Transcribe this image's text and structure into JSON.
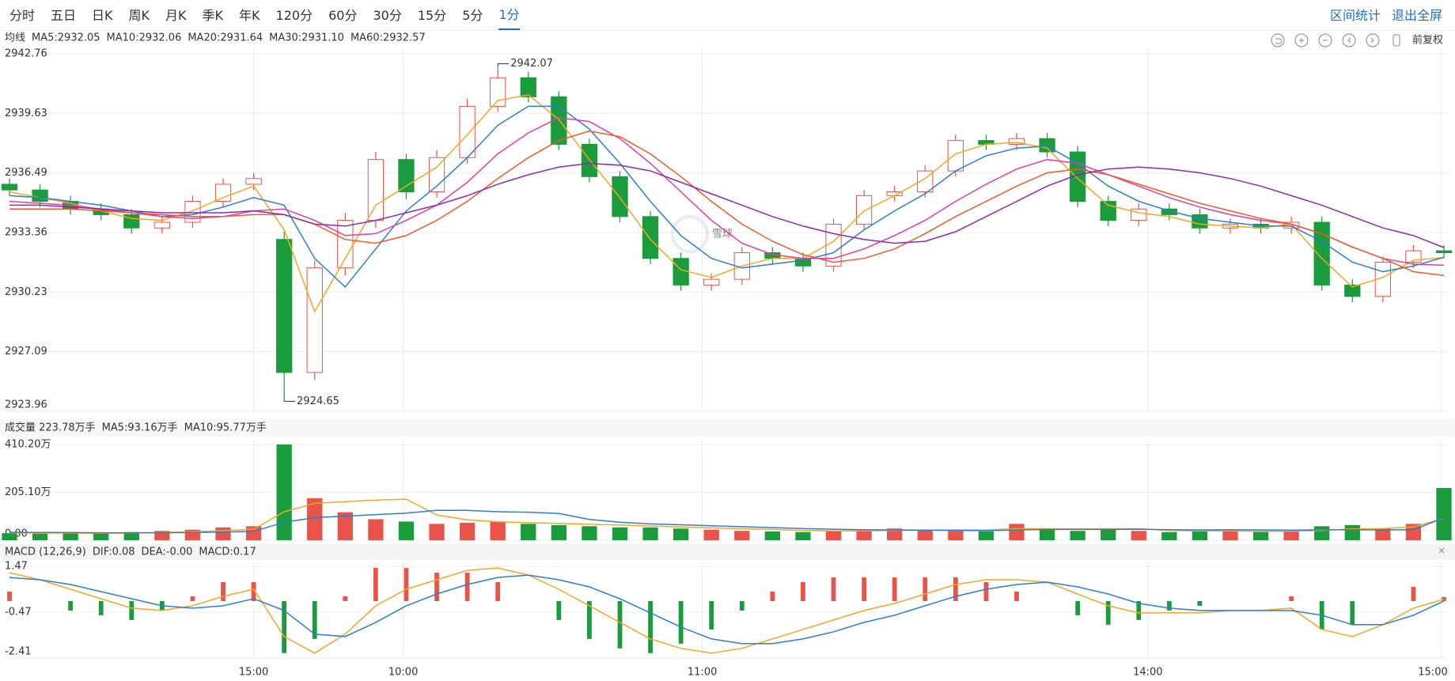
{
  "toolbar": {
    "tabs": [
      "分时",
      "五日",
      "日K",
      "周K",
      "月K",
      "季K",
      "年K",
      "120分",
      "60分",
      "30分",
      "15分",
      "5分",
      "1分"
    ],
    "active_tab": 12,
    "actions": [
      "区间统计",
      "退出全屏"
    ],
    "adjust": "前复权"
  },
  "chart_data": [
    {
      "type": "candlestick",
      "title": "均线",
      "watermark": "雪球",
      "up_color": "#e8534a",
      "down_color": "#1a9b3c",
      "grid": true,
      "ylim": [
        2923.96,
        2942.76
      ],
      "yticks": [
        2942.76,
        2939.63,
        2936.49,
        2933.36,
        2930.23,
        2927.09,
        2923.96
      ],
      "open": [
        2935.9,
        2935.6,
        2935.0,
        2934.6,
        2934.3,
        2933.6,
        2933.9,
        2935.0,
        2935.9,
        2933.0,
        2926.0,
        2931.5,
        2934.0,
        2937.2,
        2935.5,
        2937.3,
        2940.0,
        2941.5,
        2940.5,
        2938.0,
        2936.3,
        2934.2,
        2932.0,
        2930.6,
        2930.9,
        2932.3,
        2932.0,
        2931.6,
        2933.8,
        2935.3,
        2935.5,
        2936.6,
        2938.2,
        2938.0,
        2938.3,
        2937.6,
        2935.0,
        2934.0,
        2934.6,
        2934.3,
        2933.6,
        2933.8,
        2933.6,
        2933.9,
        2930.6,
        2930.0,
        2931.8,
        2932.4
      ],
      "close": [
        2935.6,
        2935.0,
        2934.6,
        2934.3,
        2933.6,
        2933.9,
        2935.0,
        2935.9,
        2936.2,
        2926.0,
        2931.5,
        2934.0,
        2937.2,
        2935.5,
        2937.3,
        2940.0,
        2941.5,
        2940.5,
        2938.0,
        2936.3,
        2934.2,
        2932.0,
        2930.6,
        2930.9,
        2932.3,
        2932.0,
        2931.6,
        2933.8,
        2935.3,
        2935.5,
        2936.6,
        2938.2,
        2938.0,
        2938.3,
        2937.6,
        2935.0,
        2934.0,
        2934.6,
        2934.3,
        2933.6,
        2933.8,
        2933.6,
        2933.9,
        2930.6,
        2930.0,
        2931.8,
        2932.4,
        2932.3
      ],
      "high": [
        2936.2,
        2935.9,
        2935.3,
        2934.9,
        2934.6,
        2934.2,
        2935.3,
        2936.2,
        2936.5,
        2933.4,
        2931.9,
        2934.4,
        2937.6,
        2937.5,
        2937.7,
        2940.4,
        2942.07,
        2941.8,
        2940.8,
        2938.3,
        2936.6,
        2934.5,
        2932.3,
        2931.2,
        2932.6,
        2932.6,
        2932.3,
        2934.1,
        2935.6,
        2935.8,
        2936.9,
        2938.5,
        2938.5,
        2938.6,
        2938.6,
        2937.9,
        2935.3,
        2934.9,
        2934.9,
        2934.6,
        2934.1,
        2934.1,
        2934.2,
        2934.2,
        2930.9,
        2932.1,
        2932.7,
        2932.7
      ],
      "low": [
        2935.3,
        2934.7,
        2934.3,
        2934.0,
        2933.3,
        2933.3,
        2933.6,
        2934.7,
        2935.6,
        2924.65,
        2925.6,
        2931.1,
        2933.6,
        2935.1,
        2935.2,
        2937.0,
        2939.7,
        2940.2,
        2937.7,
        2936.0,
        2933.9,
        2931.7,
        2930.3,
        2930.3,
        2930.6,
        2931.7,
        2931.3,
        2931.3,
        2933.5,
        2935.0,
        2935.2,
        2936.3,
        2937.7,
        2937.7,
        2937.3,
        2934.7,
        2933.7,
        2933.7,
        2934.0,
        2933.3,
        2933.3,
        2933.3,
        2933.3,
        2930.3,
        2929.7,
        2929.7,
        2931.5,
        2932.0
      ],
      "series": [
        {
          "name": "MA5:2932.05",
          "color": "#f5a623",
          "values": [
            2935.5,
            2935.2,
            2934.9,
            2934.5,
            2934.1,
            2934.0,
            2934.5,
            2935.2,
            2935.8,
            2933.5,
            2929.2,
            2932.0,
            2934.8,
            2935.8,
            2936.8,
            2938.5,
            2940.3,
            2940.6,
            2939.3,
            2937.2,
            2935.2,
            2933.0,
            2931.4,
            2931.0,
            2931.6,
            2932.0,
            2932.0,
            2932.9,
            2934.5,
            2935.3,
            2936.2,
            2937.5,
            2938.0,
            2938.1,
            2937.8,
            2936.2,
            2934.8,
            2934.4,
            2934.2,
            2933.8,
            2933.7,
            2933.6,
            2933.8,
            2932.0,
            2930.5,
            2931.0,
            2931.9,
            2932.05
          ]
        },
        {
          "name": "MA10:2932.06",
          "color": "#2a7fd4",
          "values": [
            2935.3,
            2935.2,
            2935.0,
            2934.8,
            2934.5,
            2934.2,
            2934.3,
            2934.7,
            2935.2,
            2934.8,
            2932.0,
            2930.5,
            2932.5,
            2934.5,
            2935.8,
            2937.3,
            2939.0,
            2940.0,
            2940.0,
            2938.8,
            2937.0,
            2935.0,
            2933.2,
            2932.0,
            2931.5,
            2931.7,
            2931.9,
            2932.3,
            2933.5,
            2934.5,
            2935.4,
            2936.6,
            2937.4,
            2937.8,
            2937.9,
            2937.0,
            2935.8,
            2935.0,
            2934.5,
            2934.1,
            2933.9,
            2933.7,
            2933.7,
            2932.9,
            2931.8,
            2931.3,
            2931.6,
            2932.06
          ]
        },
        {
          "name": "MA20:2931.64",
          "color": "#e83ba3",
          "values": [
            2935.0,
            2934.9,
            2934.8,
            2934.6,
            2934.4,
            2934.2,
            2934.1,
            2934.2,
            2934.5,
            2934.6,
            2934.0,
            2933.2,
            2933.3,
            2934.0,
            2934.8,
            2936.0,
            2937.5,
            2938.6,
            2939.4,
            2939.2,
            2938.3,
            2937.0,
            2935.5,
            2934.0,
            2932.8,
            2932.2,
            2932.0,
            2932.0,
            2932.5,
            2933.2,
            2934.0,
            2935.0,
            2935.9,
            2936.7,
            2937.2,
            2937.0,
            2936.4,
            2935.8,
            2935.2,
            2934.7,
            2934.3,
            2934.0,
            2933.8,
            2933.3,
            2932.6,
            2932.0,
            2931.7,
            2931.64
          ]
        },
        {
          "name": "MA30:2931.10",
          "color": "#f05a28",
          "values": [
            2934.6,
            2934.6,
            2934.6,
            2934.5,
            2934.4,
            2934.3,
            2934.2,
            2934.2,
            2934.3,
            2934.3,
            2933.8,
            2933.0,
            2932.8,
            2933.2,
            2934.0,
            2935.0,
            2936.2,
            2937.3,
            2938.2,
            2938.7,
            2938.4,
            2937.5,
            2936.3,
            2935.0,
            2933.8,
            2932.9,
            2932.2,
            2931.8,
            2932.0,
            2932.5,
            2933.3,
            2934.2,
            2935.0,
            2935.8,
            2936.5,
            2936.7,
            2936.4,
            2935.9,
            2935.4,
            2934.9,
            2934.5,
            2934.1,
            2933.8,
            2933.3,
            2932.6,
            2932.0,
            2931.3,
            2931.1
          ]
        },
        {
          "name": "MA60:2932.57",
          "color": "#8a2bb0",
          "values": [
            2934.8,
            2934.8,
            2934.7,
            2934.6,
            2934.5,
            2934.4,
            2934.4,
            2934.4,
            2934.5,
            2934.3,
            2933.8,
            2933.7,
            2934.0,
            2934.4,
            2934.8,
            2935.3,
            2935.9,
            2936.4,
            2936.8,
            2937.0,
            2936.9,
            2936.6,
            2936.0,
            2935.4,
            2934.8,
            2934.2,
            2933.7,
            2933.3,
            2933.0,
            2932.8,
            2932.9,
            2933.4,
            2934.2,
            2935.0,
            2935.8,
            2936.4,
            2936.7,
            2936.8,
            2936.7,
            2936.5,
            2936.2,
            2935.8,
            2935.3,
            2934.8,
            2934.2,
            2933.6,
            2933.2,
            2932.57
          ]
        }
      ]
    },
    {
      "type": "bar",
      "title": "成交量 223.78万手",
      "ylim": [
        0,
        410.2
      ],
      "yticks": [
        {
          "value": 410.2,
          "label": "410.20万"
        },
        {
          "value": 205.1,
          "label": "205.10万"
        },
        {
          "value": 0,
          "label": "0.00"
        }
      ],
      "values": [
        30,
        28,
        32,
        30,
        35,
        40,
        45,
        55,
        60,
        410.2,
        180,
        120,
        90,
        80,
        70,
        75,
        80,
        70,
        65,
        60,
        55,
        55,
        50,
        45,
        40,
        38,
        35,
        40,
        45,
        50,
        45,
        40,
        38,
        70,
        50,
        40,
        45,
        40,
        35,
        38,
        40,
        35,
        38,
        60,
        65,
        50,
        70,
        223.78
      ],
      "series": [
        {
          "name": "MA5:93.16万手",
          "color": "#f5a623",
          "values": [
            32,
            31,
            31,
            30,
            31,
            33,
            36,
            41,
            47,
            122,
            158,
            165,
            172,
            176,
            108,
            87,
            79,
            75,
            72,
            68,
            65,
            61,
            57,
            53,
            49,
            46,
            42,
            40,
            40,
            42,
            43,
            44,
            44,
            49,
            49,
            48,
            49,
            49,
            42,
            40,
            40,
            38,
            38,
            42,
            48,
            50,
            57,
            93.16
          ]
        },
        {
          "name": "MA10:95.77万手",
          "color": "#2a7fd4",
          "values": [
            34,
            33,
            33,
            32,
            32,
            32,
            33,
            35,
            38,
            77,
            97,
            103,
            110,
            116,
            128,
            128,
            122,
            120,
            115,
            89,
            77,
            70,
            66,
            62,
            58,
            54,
            50,
            47,
            45,
            44,
            43,
            42,
            41,
            44,
            46,
            46,
            46,
            47,
            45,
            44,
            45,
            44,
            43,
            45,
            45,
            44,
            45,
            95.77
          ]
        }
      ]
    },
    {
      "type": "macd",
      "title": "MACD (12,26,9)",
      "ylim": [
        -2.41,
        1.47
      ],
      "yticks": [
        1.47,
        -0.47,
        -2.41
      ],
      "xlim": [
        0,
        47
      ],
      "xticks": [
        {
          "value": 8,
          "label": "15:00"
        },
        {
          "value": 12.9,
          "label": "10:00"
        },
        {
          "value": 22.7,
          "label": "11:00"
        },
        {
          "value": 37.3,
          "label": "14:00"
        },
        {
          "value": 46.9,
          "label": "15:00"
        }
      ],
      "series": [
        {
          "name": "DIF:0.08",
          "color": "#f5a623",
          "values": [
            1.2,
            0.9,
            0.5,
            0.1,
            -0.3,
            -0.4,
            -0.2,
            0.2,
            0.5,
            -1.5,
            -2.2,
            -1.4,
            -0.2,
            0.5,
            0.9,
            1.3,
            1.4,
            1.1,
            0.5,
            -0.2,
            -0.9,
            -1.6,
            -2.0,
            -2.2,
            -2.0,
            -1.6,
            -1.2,
            -0.8,
            -0.4,
            -0.1,
            0.3,
            0.7,
            0.9,
            0.9,
            0.8,
            0.3,
            -0.2,
            -0.5,
            -0.5,
            -0.5,
            -0.4,
            -0.4,
            -0.3,
            -1.2,
            -1.5,
            -1.0,
            -0.3,
            0.08
          ]
        },
        {
          "name": "DEA:-0.00",
          "color": "#2a7fd4",
          "values": [
            1.0,
            0.9,
            0.7,
            0.4,
            0.1,
            -0.2,
            -0.3,
            -0.2,
            0.1,
            -0.4,
            -1.4,
            -1.5,
            -0.9,
            -0.2,
            0.3,
            0.7,
            1.0,
            1.1,
            0.9,
            0.6,
            0.1,
            -0.5,
            -1.1,
            -1.6,
            -1.8,
            -1.8,
            -1.6,
            -1.3,
            -0.9,
            -0.6,
            -0.2,
            0.2,
            0.5,
            0.7,
            0.8,
            0.6,
            0.3,
            -0.1,
            -0.3,
            -0.4,
            -0.4,
            -0.4,
            -0.4,
            -0.6,
            -1.0,
            -1.0,
            -0.6,
            0
          ]
        }
      ],
      "hist": {
        "name": "MACD:0.17",
        "up_color": "#e8534a",
        "down_color": "#1a9b3c",
        "values": [
          0.4,
          0,
          -0.4,
          -0.6,
          -0.8,
          -0.4,
          0.2,
          0.8,
          0.8,
          -2.2,
          -1.6,
          0.2,
          1.4,
          1.4,
          1.2,
          1.2,
          0.8,
          0,
          -0.8,
          -1.6,
          -2.0,
          -2.2,
          -1.8,
          -1.2,
          -0.4,
          0.4,
          0.8,
          1.0,
          1.0,
          1.0,
          1.0,
          1.0,
          0.8,
          0.4,
          0,
          -0.6,
          -1.0,
          -0.8,
          -0.4,
          -0.2,
          0,
          0,
          0.2,
          -1.2,
          -1.0,
          0,
          0.6,
          0.17
        ]
      }
    }
  ]
}
